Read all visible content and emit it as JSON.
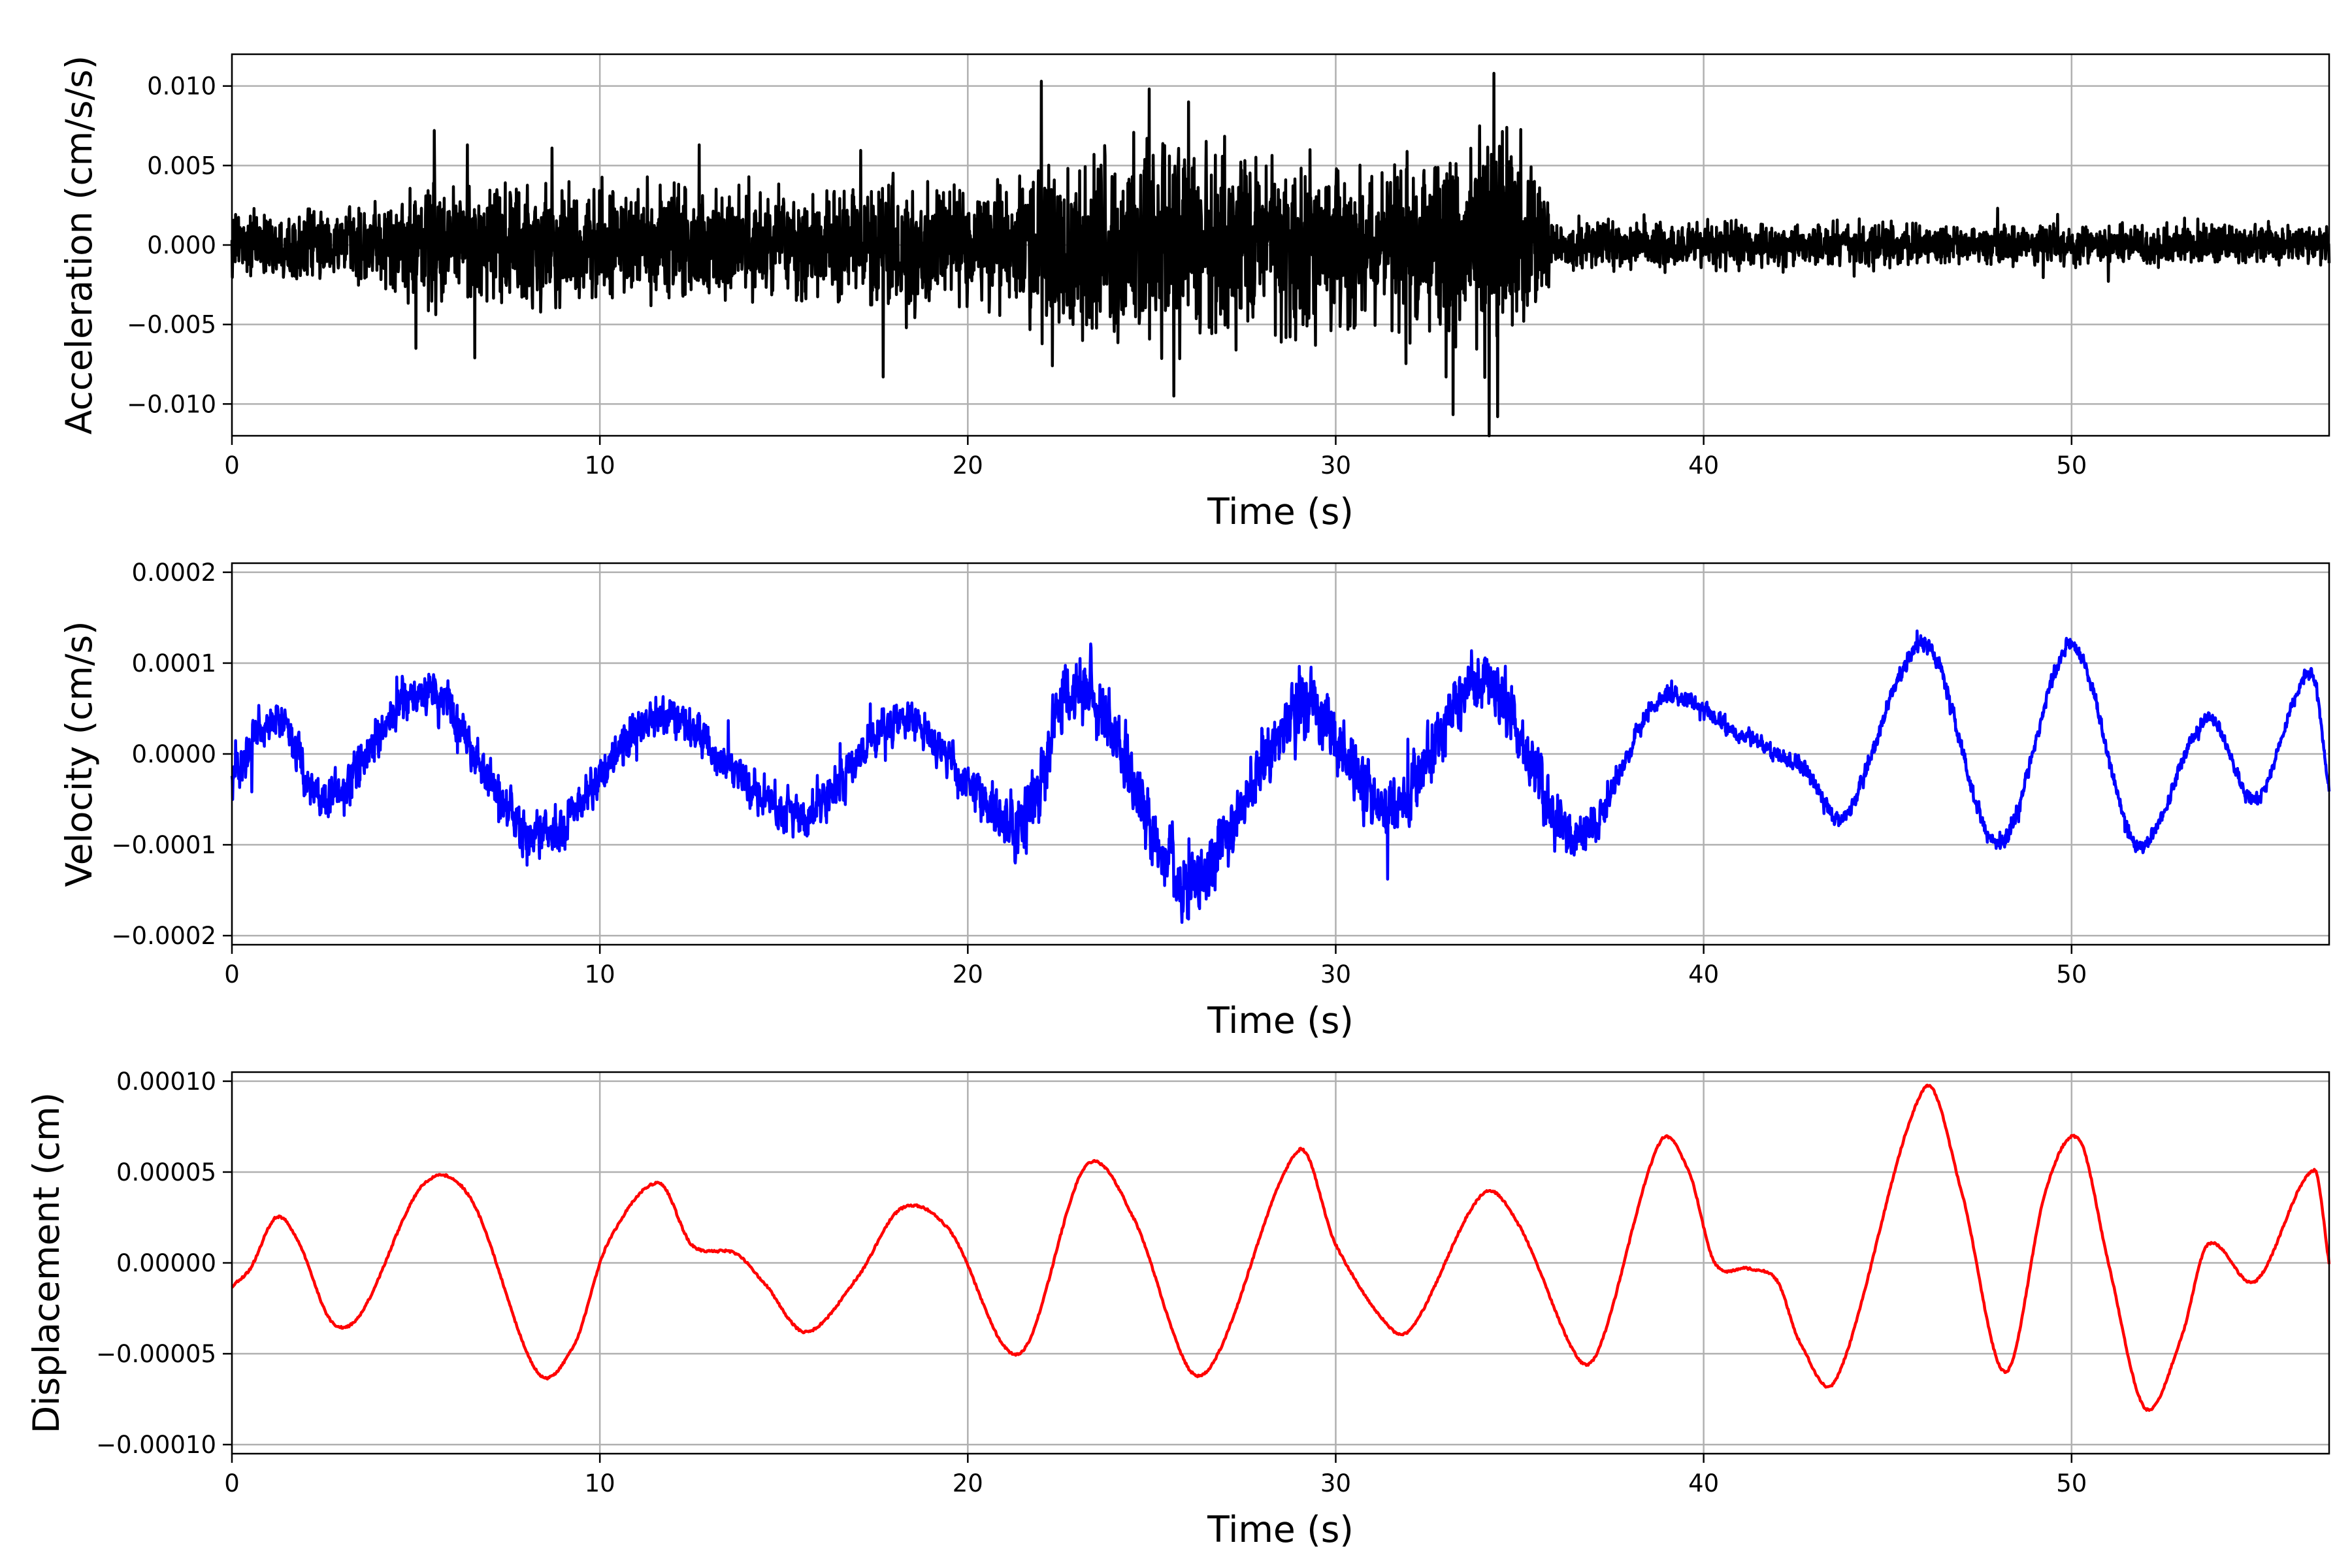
{
  "chart_data": [
    {
      "type": "line",
      "xlabel": "Time (s)",
      "ylabel": "Acceleration (cm/s/s)",
      "xlim": [
        0,
        57
      ],
      "ylim": [
        -0.012,
        0.012
      ],
      "xticks": [
        0,
        10,
        20,
        30,
        40,
        50
      ],
      "xtick_labels": [
        "0",
        "10",
        "20",
        "30",
        "40",
        "50"
      ],
      "yticks": [
        -0.01,
        -0.005,
        0.0,
        0.005,
        0.01
      ],
      "ytick_labels": [
        "−0.010",
        "−0.005",
        "0.000",
        "0.005",
        "0.010"
      ],
      "grid": true,
      "series": [
        {
          "color": "#000000",
          "signal": "noise",
          "envelope_t": [
            0,
            4,
            5,
            10,
            21,
            22,
            26,
            33,
            34.3,
            35.6,
            36,
            57
          ],
          "envelope_amp": [
            0.0015,
            0.0018,
            0.0035,
            0.0028,
            0.003,
            0.0045,
            0.0048,
            0.004,
            0.006,
            0.0035,
            0.0012,
            0.0009
          ],
          "peaks": [
            [
              5.5,
              0.0072
            ],
            [
              6.4,
              0.0063
            ],
            [
              5.0,
              -0.0065
            ],
            [
              6.6,
              -0.0071
            ],
            [
              8.7,
              0.0061
            ],
            [
              12.7,
              0.0063
            ],
            [
              17.7,
              -0.0083
            ],
            [
              22.0,
              0.0103
            ],
            [
              22.3,
              -0.0076
            ],
            [
              25.6,
              -0.0095
            ],
            [
              26.0,
              0.009
            ],
            [
              34.3,
              0.0108
            ],
            [
              34.4,
              -0.0108
            ],
            [
              33.0,
              -0.0083
            ],
            [
              35.4,
              0.004
            ]
          ]
        }
      ]
    },
    {
      "type": "line",
      "xlabel": "Time (s)",
      "ylabel": "Velocity (cm/s)",
      "xlim": [
        0,
        57
      ],
      "ylim": [
        -0.00021,
        0.00021
      ],
      "xticks": [
        0,
        10,
        20,
        30,
        40,
        50
      ],
      "xtick_labels": [
        "0",
        "10",
        "20",
        "30",
        "40",
        "50"
      ],
      "yticks": [
        -0.0002,
        -0.0001,
        0.0,
        0.0001,
        0.0002
      ],
      "ytick_labels": [
        "−0.0002",
        "−0.0001",
        "0.0000",
        "0.0001",
        "0.0002"
      ],
      "grid": true,
      "series": [
        {
          "color": "#0000ff",
          "signal": "trend-plus-noise",
          "t": [
            0,
            1.2,
            2.5,
            5.3,
            8.3,
            11.6,
            15.5,
            18.2,
            21.4,
            23.0,
            26.0,
            29.0,
            31.5,
            34.0,
            36.6,
            38.8,
            41.0,
            42.8,
            43.8,
            46.0,
            48.0,
            50.0,
            51.8,
            53.7,
            55.0,
            56.5,
            57.0
          ],
          "v": [
            -3e-05,
            4e-05,
            -5e-05,
            7e-05,
            -9e-05,
            4e-05,
            -7e-05,
            4e-05,
            -8e-05,
            8e-05,
            -0.00014,
            5e-05,
            -6e-05,
            8e-05,
            -9e-05,
            6e-05,
            2e-05,
            -2e-05,
            -7e-05,
            0.00012,
            -0.0001,
            0.00012,
            -0.0001,
            4e-05,
            -5e-05,
            9e-05,
            -4e-05
          ],
          "noise_t": [
            0,
            20,
            21.5,
            36,
            38,
            57
          ],
          "noise_amp": [
            2.8e-05,
            2.8e-05,
            4.5e-05,
            4e-05,
            1.2e-05,
            9e-06
          ]
        }
      ]
    },
    {
      "type": "line",
      "xlabel": "Time (s)",
      "ylabel": "Displacement (cm)",
      "xlim": [
        0,
        57
      ],
      "ylim": [
        -0.000105,
        0.000105
      ],
      "xticks": [
        0,
        10,
        20,
        30,
        40,
        50
      ],
      "xtick_labels": [
        "0",
        "10",
        "20",
        "30",
        "40",
        "50"
      ],
      "yticks": [
        -0.0001,
        -5e-05,
        0.0,
        5e-05,
        0.0001
      ],
      "ytick_labels": [
        "−0.00010",
        "−0.00005",
        "0.00000",
        "0.00005",
        "0.00010"
      ],
      "grid": true,
      "series": [
        {
          "color": "#ff0000",
          "signal": "smooth",
          "t": [
            0,
            0.5,
            1.2,
            1.8,
            2.7,
            3.5,
            5.2,
            6.5,
            8.3,
            9.3,
            10.2,
            11.6,
            12.5,
            13.7,
            14.5,
            15.6,
            17.0,
            18.2,
            19.5,
            21.4,
            23.2,
            24.5,
            26.0,
            26.8,
            29.0,
            30.0,
            31.6,
            32.2,
            34.0,
            35.0,
            36.6,
            37.2,
            38.8,
            39.6,
            40.3,
            41.2,
            42.0,
            42.6,
            43.6,
            46.0,
            47.0,
            48.2,
            49.3,
            50.2,
            51.0,
            52.0,
            53.0,
            53.7,
            55.0,
            56.6,
            57.0
          ],
          "v": [
            -1.3e-05,
            -3e-06,
            2.5e-05,
            1.2e-05,
            -3.2e-05,
            -2.8e-05,
            4.3e-05,
            3.5e-05,
            -6e-05,
            -4.5e-05,
            1e-05,
            4.4e-05,
            1e-05,
            5e-06,
            -1.2e-05,
            -3.8e-05,
            -8e-06,
            3e-05,
            1.8e-05,
            -5e-05,
            5.3e-05,
            2.5e-05,
            -5.8e-05,
            -5e-05,
            6.2e-05,
            1e-05,
            -3.8e-05,
            -3.2e-05,
            3.8e-05,
            2e-05,
            -5.3e-05,
            -4.5e-05,
            6.6e-05,
            5e-05,
            0.0,
            -3e-06,
            -1e-05,
            -4.3e-05,
            -6.4e-05,
            9.6e-05,
            4e-05,
            -6e-05,
            4e-05,
            6.8e-05,
            0.0,
            -8e-05,
            -4e-05,
            1e-05,
            -1e-05,
            5.1e-05,
            0.0
          ]
        }
      ]
    }
  ]
}
